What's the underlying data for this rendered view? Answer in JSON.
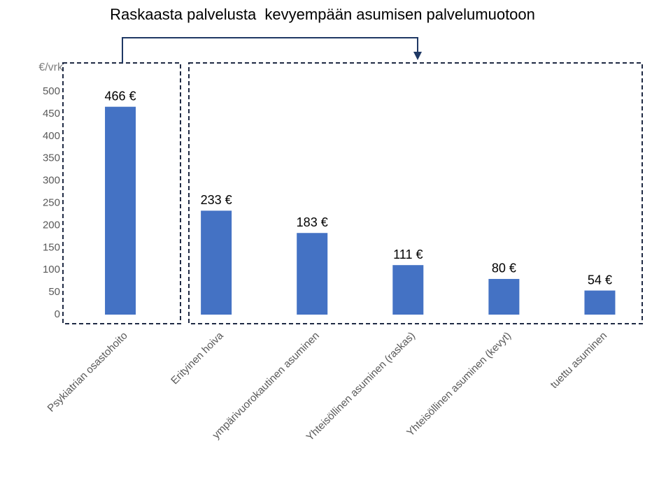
{
  "chart_data": {
    "type": "bar",
    "title": "Raskaasta palvelusta  kevyempään asumisen palvelumuotoon",
    "y_label": "€/vrk",
    "categories": [
      "Psykiatrian osastohoito",
      "Erityinen hoiva",
      "ympärivuorokautinen asuminen",
      "Yhteisöllinen asuminen (raskas)",
      "Yhteisöllinen asuminen (kevyt)",
      "tuettu asuminen"
    ],
    "values": [
      466,
      233,
      183,
      111,
      80,
      54
    ],
    "value_labels": [
      "466 €",
      "233 €",
      "183 €",
      "111 €",
      "80 €",
      "54 €"
    ],
    "color": "#4472c4",
    "ylim": [
      0,
      500
    ],
    "yticks": [
      0,
      50,
      100,
      150,
      200,
      250,
      300,
      350,
      400,
      450,
      500
    ],
    "grid": false
  }
}
